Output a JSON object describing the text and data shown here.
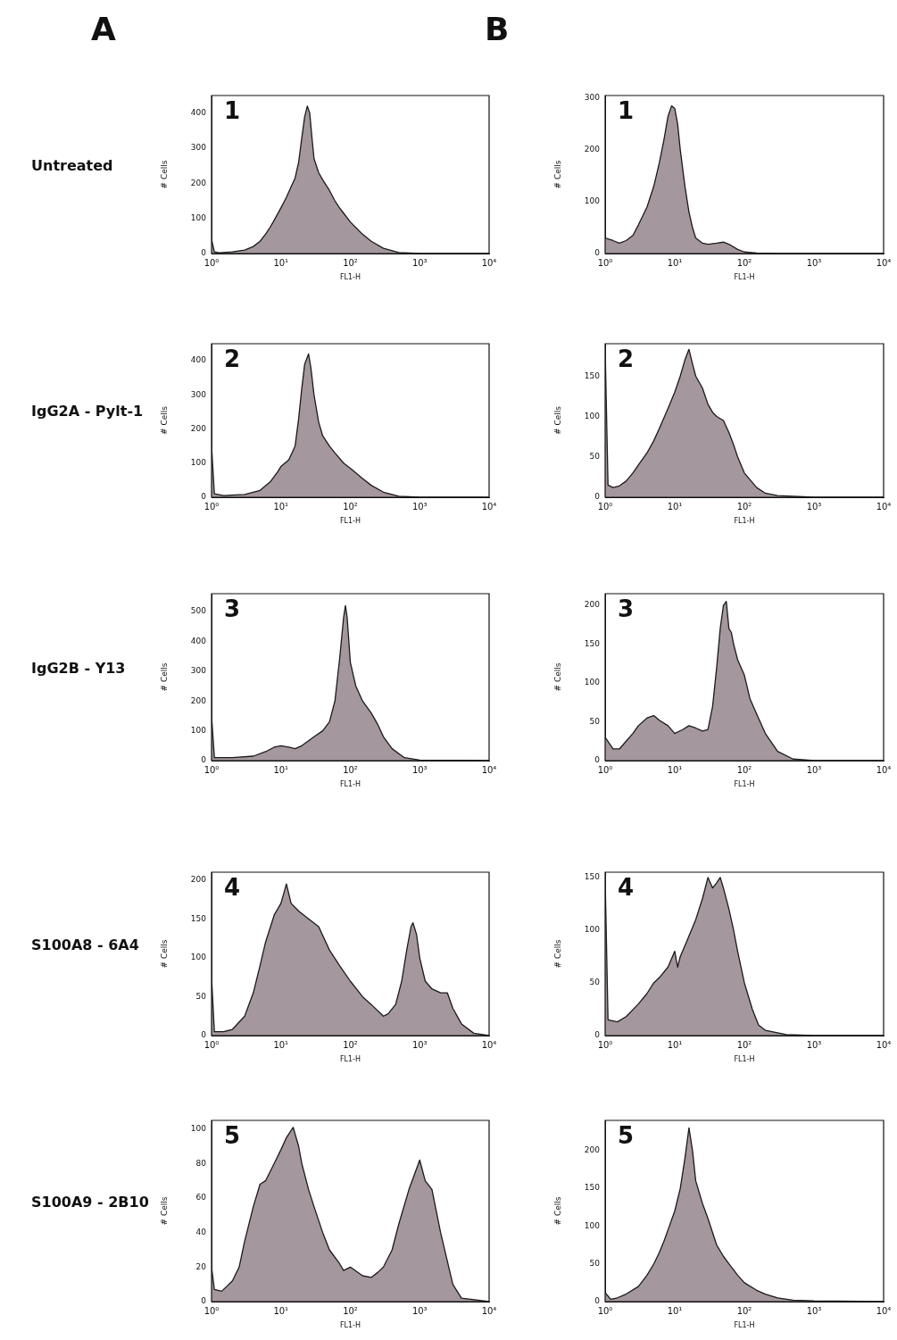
{
  "chart_data": [
    {
      "type": "area",
      "title": "A",
      "annotations": [
        "1",
        "Untreated"
      ],
      "xlabel": "FL1-H",
      "ylabel": "# Cells",
      "log": "x",
      "grid": false,
      "legend": false,
      "xlim": [
        1,
        10000
      ],
      "xticks": [
        {
          "value": 1,
          "label": "10⁰"
        },
        {
          "value": 10,
          "label": "10¹"
        },
        {
          "value": 100,
          "label": "10²"
        },
        {
          "value": 1000,
          "label": "10³"
        },
        {
          "value": 10000,
          "label": "10⁴"
        }
      ],
      "ylim": [
        0,
        450
      ],
      "yticks": [
        0,
        100,
        200,
        300,
        400
      ],
      "series": [
        {
          "color": "#a5979e",
          "x": [
            1,
            1.1,
            1.3,
            2,
            3,
            4,
            5,
            6,
            7,
            8,
            10,
            12,
            14,
            16,
            18,
            20,
            22,
            24,
            26,
            28,
            30,
            35,
            40,
            50,
            60,
            70,
            80,
            100,
            150,
            200,
            300,
            500,
            1000,
            10000
          ],
          "values": [
            40,
            5,
            2,
            5,
            10,
            20,
            35,
            55,
            75,
            95,
            130,
            160,
            190,
            215,
            260,
            330,
            390,
            420,
            400,
            330,
            270,
            230,
            210,
            180,
            150,
            130,
            115,
            90,
            55,
            35,
            15,
            3,
            0,
            0
          ]
        }
      ]
    },
    {
      "type": "area",
      "title": "B",
      "annotations": [
        "1"
      ],
      "xlabel": "FL1-H",
      "ylabel": "# Cells",
      "log": "x",
      "grid": false,
      "legend": false,
      "xlim": [
        1,
        10000
      ],
      "xticks": [
        {
          "value": 1,
          "label": "10⁰"
        },
        {
          "value": 10,
          "label": "10¹"
        },
        {
          "value": 100,
          "label": "10²"
        },
        {
          "value": 1000,
          "label": "10³"
        },
        {
          "value": 10000,
          "label": "10⁴"
        }
      ],
      "ylim": [
        0,
        305
      ],
      "yticks": [
        0,
        100,
        200,
        300
      ],
      "series": [
        {
          "color": "#a5979e",
          "x": [
            1,
            1.3,
            1.6,
            2,
            2.5,
            3,
            4,
            5,
            6,
            7,
            8,
            9,
            10,
            11,
            12,
            14,
            16,
            18,
            20,
            25,
            30,
            40,
            50,
            60,
            80,
            100,
            150,
            300,
            10000
          ],
          "values": [
            30,
            25,
            20,
            25,
            35,
            55,
            90,
            130,
            175,
            220,
            265,
            285,
            280,
            250,
            200,
            130,
            80,
            50,
            30,
            20,
            18,
            20,
            22,
            18,
            8,
            3,
            1,
            0,
            0
          ]
        }
      ]
    },
    {
      "type": "area",
      "annotations": [
        "2",
        "IgG2A - Pylt-1"
      ],
      "xlabel": "FL1-H",
      "ylabel": "# Cells",
      "log": "x",
      "grid": false,
      "legend": false,
      "xlim": [
        1,
        10000
      ],
      "xticks": [
        {
          "value": 1,
          "label": "10⁰"
        },
        {
          "value": 10,
          "label": "10¹"
        },
        {
          "value": 100,
          "label": "10²"
        },
        {
          "value": 1000,
          "label": "10³"
        },
        {
          "value": 10000,
          "label": "10⁴"
        }
      ],
      "ylim": [
        0,
        450
      ],
      "yticks": [
        0,
        100,
        200,
        300,
        400
      ],
      "series": [
        {
          "color": "#a5979e",
          "x": [
            1,
            1.1,
            1.5,
            3,
            5,
            7,
            9,
            10,
            13,
            16,
            18,
            20,
            22,
            25,
            27,
            30,
            35,
            40,
            50,
            60,
            80,
            100,
            150,
            200,
            300,
            500,
            1000,
            10000
          ],
          "values": [
            150,
            10,
            5,
            8,
            20,
            45,
            75,
            90,
            110,
            150,
            230,
            320,
            390,
            420,
            380,
            300,
            220,
            180,
            150,
            130,
            100,
            85,
            55,
            35,
            15,
            3,
            0,
            0
          ]
        }
      ]
    },
    {
      "type": "area",
      "annotations": [
        "2"
      ],
      "xlabel": "FL1-H",
      "ylabel": "# Cells",
      "log": "x",
      "grid": false,
      "legend": false,
      "xlim": [
        1,
        10000
      ],
      "xticks": [
        {
          "value": 1,
          "label": "10⁰"
        },
        {
          "value": 10,
          "label": "10¹"
        },
        {
          "value": 100,
          "label": "10²"
        },
        {
          "value": 1000,
          "label": "10³"
        },
        {
          "value": 10000,
          "label": "10⁴"
        }
      ],
      "ylim": [
        0,
        190
      ],
      "yticks": [
        0,
        50,
        100,
        150
      ],
      "series": [
        {
          "color": "#a5979e",
          "x": [
            1,
            1.1,
            1.3,
            1.6,
            2,
            2.5,
            3,
            4,
            5,
            6,
            8,
            10,
            12,
            14,
            16,
            18,
            20,
            25,
            30,
            35,
            40,
            50,
            60,
            70,
            80,
            100,
            150,
            200,
            300,
            1000,
            10000
          ],
          "values": [
            185,
            15,
            12,
            14,
            20,
            30,
            40,
            55,
            70,
            85,
            110,
            130,
            150,
            170,
            183,
            165,
            150,
            135,
            115,
            105,
            100,
            95,
            80,
            65,
            50,
            30,
            12,
            5,
            2,
            0,
            0
          ]
        }
      ]
    },
    {
      "type": "area",
      "annotations": [
        "3",
        "IgG2B - Y13"
      ],
      "xlabel": "FL1-H",
      "ylabel": "# Cells",
      "log": "x",
      "grid": false,
      "legend": false,
      "xlim": [
        1,
        10000
      ],
      "xticks": [
        {
          "value": 1,
          "label": "10⁰"
        },
        {
          "value": 10,
          "label": "10¹"
        },
        {
          "value": 100,
          "label": "10²"
        },
        {
          "value": 1000,
          "label": "10³"
        },
        {
          "value": 10000,
          "label": "10⁴"
        }
      ],
      "ylim": [
        0,
        560
      ],
      "yticks": [
        0,
        100,
        200,
        300,
        400,
        500
      ],
      "series": [
        {
          "color": "#a5979e",
          "x": [
            1,
            1.1,
            2,
            4,
            6,
            8,
            10,
            13,
            16,
            20,
            30,
            40,
            50,
            60,
            70,
            80,
            85,
            90,
            100,
            120,
            150,
            200,
            250,
            300,
            400,
            600,
            1000,
            10000
          ],
          "values": [
            150,
            10,
            10,
            15,
            30,
            45,
            50,
            45,
            40,
            50,
            80,
            100,
            130,
            200,
            340,
            480,
            520,
            480,
            330,
            250,
            200,
            160,
            120,
            80,
            40,
            10,
            2,
            0
          ]
        }
      ]
    },
    {
      "type": "area",
      "annotations": [
        "3"
      ],
      "xlabel": "FL1-H",
      "ylabel": "# Cells",
      "log": "x",
      "grid": false,
      "legend": false,
      "xlim": [
        1,
        10000
      ],
      "xticks": [
        {
          "value": 1,
          "label": "10⁰"
        },
        {
          "value": 10,
          "label": "10¹"
        },
        {
          "value": 100,
          "label": "10²"
        },
        {
          "value": 1000,
          "label": "10³"
        },
        {
          "value": 10000,
          "label": "10⁴"
        }
      ],
      "ylim": [
        0,
        215
      ],
      "yticks": [
        0,
        50,
        100,
        150,
        200
      ],
      "series": [
        {
          "color": "#a5979e",
          "x": [
            1,
            1.3,
            1.6,
            2,
            2.5,
            3,
            4,
            5,
            6,
            8,
            10,
            13,
            16,
            20,
            25,
            30,
            35,
            40,
            45,
            50,
            55,
            60,
            65,
            70,
            80,
            100,
            120,
            150,
            200,
            300,
            500,
            1000,
            10000
          ],
          "values": [
            30,
            15,
            15,
            25,
            35,
            45,
            55,
            58,
            52,
            45,
            35,
            40,
            45,
            42,
            38,
            40,
            70,
            120,
            170,
            200,
            205,
            170,
            165,
            150,
            130,
            110,
            80,
            60,
            35,
            12,
            2,
            0,
            0
          ]
        }
      ]
    },
    {
      "type": "area",
      "annotations": [
        "4",
        "S100A8 - 6A4"
      ],
      "xlabel": "FL1-H",
      "ylabel": "# Cells",
      "log": "x",
      "grid": false,
      "legend": false,
      "xlim": [
        1,
        10000
      ],
      "xticks": [
        {
          "value": 1,
          "label": "10⁰"
        },
        {
          "value": 10,
          "label": "10¹"
        },
        {
          "value": 100,
          "label": "10²"
        },
        {
          "value": 1000,
          "label": "10³"
        },
        {
          "value": 10000,
          "label": "10⁴"
        }
      ],
      "ylim": [
        0,
        210
      ],
      "yticks": [
        0,
        50,
        100,
        150,
        200
      ],
      "series": [
        {
          "color": "#a5979e",
          "x": [
            1,
            1.1,
            1.5,
            2,
            3,
            4,
            5,
            6,
            8,
            10,
            12,
            14,
            18,
            25,
            35,
            50,
            70,
            100,
            150,
            200,
            300,
            350,
            450,
            550,
            650,
            750,
            800,
            900,
            1000,
            1200,
            1500,
            2000,
            2500,
            3000,
            4000,
            6000,
            10000
          ],
          "values": [
            75,
            5,
            5,
            8,
            25,
            55,
            90,
            120,
            155,
            170,
            195,
            170,
            160,
            150,
            140,
            110,
            90,
            70,
            50,
            40,
            25,
            28,
            40,
            70,
            110,
            140,
            145,
            130,
            100,
            70,
            60,
            55,
            55,
            35,
            15,
            3,
            0
          ]
        }
      ]
    },
    {
      "type": "area",
      "annotations": [
        "4"
      ],
      "xlabel": "FL1-H",
      "ylabel": "# Cells",
      "log": "x",
      "grid": false,
      "legend": false,
      "xlim": [
        1,
        10000
      ],
      "xticks": [
        {
          "value": 1,
          "label": "10⁰"
        },
        {
          "value": 10,
          "label": "10¹"
        },
        {
          "value": 100,
          "label": "10²"
        },
        {
          "value": 1000,
          "label": "10³"
        },
        {
          "value": 10000,
          "label": "10⁴"
        }
      ],
      "ylim": [
        0,
        155
      ],
      "yticks": [
        0,
        50,
        100,
        150
      ],
      "series": [
        {
          "color": "#a5979e",
          "x": [
            1,
            1.1,
            1.5,
            2,
            3,
            4,
            5,
            6,
            8,
            10,
            11,
            12,
            15,
            20,
            25,
            30,
            35,
            40,
            45,
            50,
            60,
            70,
            80,
            100,
            130,
            160,
            200,
            400,
            1000,
            10000
          ],
          "values": [
            150,
            15,
            13,
            18,
            30,
            40,
            50,
            55,
            65,
            80,
            65,
            75,
            90,
            110,
            130,
            150,
            140,
            145,
            150,
            140,
            120,
            100,
            80,
            50,
            25,
            10,
            5,
            1,
            0,
            0
          ]
        }
      ]
    },
    {
      "type": "area",
      "annotations": [
        "5",
        "S100A9 - 2B10"
      ],
      "xlabel": "FL1-H",
      "ylabel": "# Cells",
      "log": "x",
      "grid": false,
      "legend": false,
      "xlim": [
        1,
        10000
      ],
      "xticks": [
        {
          "value": 1,
          "label": "10⁰"
        },
        {
          "value": 10,
          "label": "10¹"
        },
        {
          "value": 100,
          "label": "10²"
        },
        {
          "value": 1000,
          "label": "10³"
        },
        {
          "value": 10000,
          "label": "10⁴"
        }
      ],
      "ylim": [
        0,
        105
      ],
      "yticks": [
        0,
        20,
        40,
        60,
        80,
        100
      ],
      "series": [
        {
          "color": "#a5979e",
          "x": [
            1,
            1.1,
            1.4,
            2,
            2.5,
            3,
            4,
            5,
            6,
            8,
            10,
            12,
            15,
            18,
            20,
            25,
            30,
            40,
            50,
            70,
            80,
            100,
            150,
            200,
            250,
            300,
            400,
            500,
            700,
            1000,
            1200,
            1500,
            2000,
            3000,
            4000,
            10000
          ],
          "values": [
            20,
            7,
            6,
            12,
            20,
            35,
            55,
            68,
            70,
            80,
            88,
            95,
            101,
            90,
            80,
            65,
            55,
            40,
            30,
            22,
            18,
            20,
            15,
            14,
            17,
            20,
            30,
            45,
            65,
            82,
            70,
            65,
            40,
            10,
            2,
            0
          ]
        }
      ]
    },
    {
      "type": "area",
      "annotations": [
        "5"
      ],
      "xlabel": "FL1-H",
      "ylabel": "# Cells",
      "log": "x",
      "grid": false,
      "legend": false,
      "xlim": [
        1,
        10000
      ],
      "xticks": [
        {
          "value": 1,
          "label": "10⁰"
        },
        {
          "value": 10,
          "label": "10¹"
        },
        {
          "value": 100,
          "label": "10²"
        },
        {
          "value": 1000,
          "label": "10³"
        },
        {
          "value": 10000,
          "label": "10⁴"
        }
      ],
      "ylim": [
        0,
        240
      ],
      "yticks": [
        0,
        50,
        100,
        150,
        200
      ],
      "series": [
        {
          "color": "#a5979e",
          "x": [
            1,
            1.2,
            1.5,
            2,
            3,
            4,
            5,
            6,
            7,
            8,
            10,
            12,
            14,
            16,
            18,
            20,
            25,
            30,
            40,
            50,
            60,
            80,
            100,
            150,
            200,
            300,
            500,
            1000,
            10000
          ],
          "values": [
            12,
            3,
            5,
            10,
            20,
            35,
            50,
            65,
            80,
            95,
            120,
            150,
            190,
            230,
            200,
            160,
            130,
            110,
            75,
            60,
            50,
            35,
            25,
            15,
            10,
            5,
            2,
            1,
            0
          ]
        }
      ]
    }
  ]
}
